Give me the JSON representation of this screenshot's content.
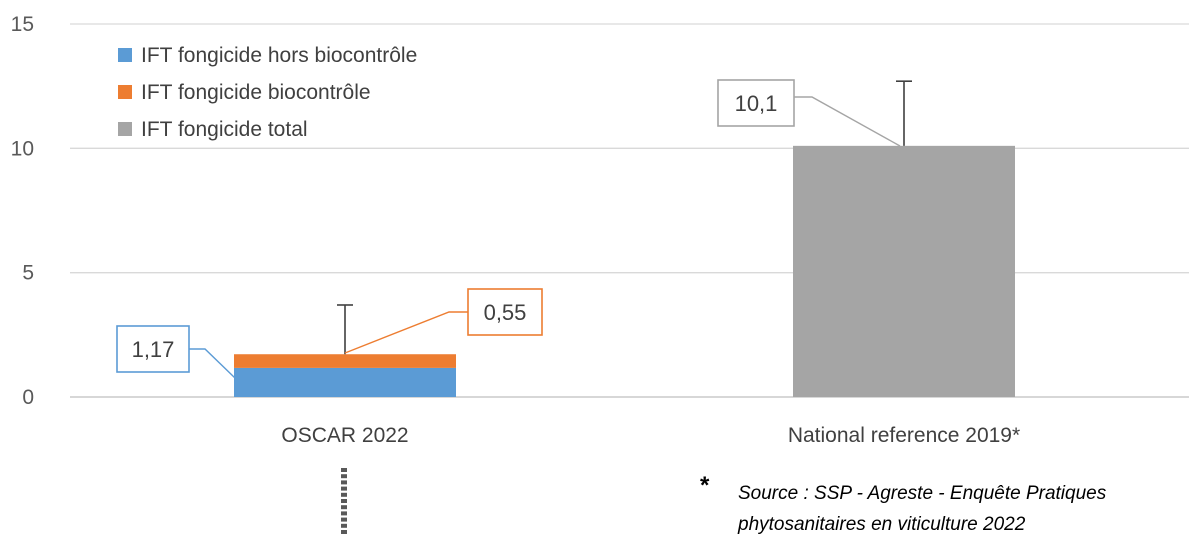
{
  "chart_data": {
    "type": "bar",
    "stacked": true,
    "categories": [
      "OSCAR 2022",
      "National reference 2019*"
    ],
    "series": [
      {
        "name": "IFT fongicide hors biocontrôle",
        "values": [
          1.17,
          null
        ],
        "color": "#5b9bd5"
      },
      {
        "name": "IFT fongicide biocontrôle",
        "values": [
          0.55,
          null
        ],
        "color": "#ed7d31"
      },
      {
        "name": "IFT fongicide total",
        "values": [
          null,
          10.1
        ],
        "color": "#a5a5a5"
      }
    ],
    "error_bars": [
      {
        "category": "OSCAR 2022",
        "top": 3.7
      },
      {
        "category": "National reference 2019*",
        "top": 12.7
      }
    ],
    "data_labels": [
      {
        "text": "1,17",
        "series": "IFT fongicide hors biocontrôle",
        "category": "OSCAR 2022",
        "color": "#5b9bd5"
      },
      {
        "text": "0,55",
        "series": "IFT fongicide biocontrôle",
        "category": "OSCAR 2022",
        "color": "#ed7d31"
      },
      {
        "text": "10,1",
        "series": "IFT fongicide total",
        "category": "National reference 2019*",
        "color": "#a5a5a5"
      }
    ],
    "yticks": [
      "0",
      "5",
      "10",
      "15"
    ],
    "ylim": [
      0,
      15
    ],
    "grid": true,
    "legend_position": "top-left",
    "footnote": {
      "marker": "*",
      "line1": "Source : SSP - Agreste - Enquête Pratiques",
      "line2": "phytosanitaires en viticulture 2022"
    }
  }
}
